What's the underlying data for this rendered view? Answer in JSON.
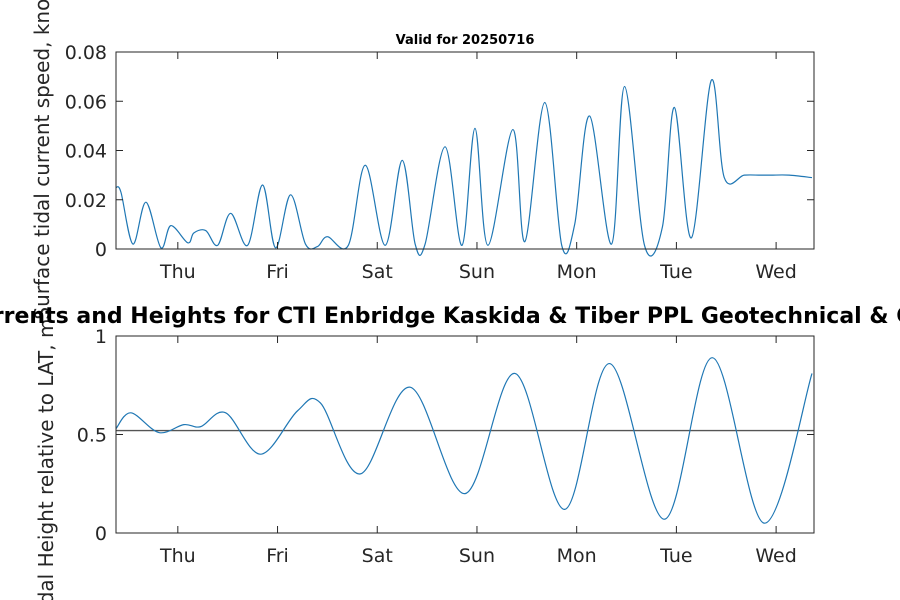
{
  "figure": {
    "main_title": "Surface Tidal Currents and Heights for CTI Enbridge  Kaskida & Tiber PPL Geotechnical & Geophysical Survey",
    "subtitle": "Valid for 20250716"
  },
  "chart_data": [
    {
      "type": "line",
      "title": "Valid for 20250716",
      "xlabel": "",
      "ylabel": "Surface tidal current speed, knots",
      "x_unit": "days",
      "xlim": [
        0,
        7
      ],
      "ylim": [
        0,
        0.08
      ],
      "yticks": [
        0,
        0.02,
        0.04,
        0.06,
        0.08
      ],
      "ytick_labels": [
        "0",
        "0.02",
        "0.04",
        "0.06",
        "0.08"
      ],
      "xticks": [
        0.62,
        1.62,
        2.62,
        3.62,
        4.62,
        5.62,
        6.62
      ],
      "xtick_labels": [
        "Thu",
        "Fri",
        "Sat",
        "Sun",
        "Mon",
        "Tue",
        "Wed"
      ],
      "grid": false,
      "color": "#1f77b4",
      "series": [
        {
          "x": [
            0,
            0.05,
            0.17,
            0.3,
            0.45,
            0.55,
            0.72,
            0.78,
            0.9,
            1.02,
            1.15,
            1.32,
            1.47,
            1.6,
            1.75,
            1.9,
            2.02,
            2.12,
            2.33,
            2.5,
            2.7,
            2.87,
            3.0,
            3.1,
            3.3,
            3.47,
            3.6,
            3.73,
            3.98,
            4.1,
            4.3,
            4.47,
            4.6,
            4.75,
            4.97,
            5.1,
            5.3,
            5.48,
            5.6,
            5.77,
            5.97,
            6.1,
            6.3,
            6.46,
            6.57,
            6.75,
            6.98
          ],
          "y": [
            0.025,
            0.023,
            0.002,
            0.019,
            0.0005,
            0.0095,
            0.0025,
            0.0065,
            0.0075,
            0.0015,
            0.0145,
            0.0015,
            0.026,
            0.0005,
            0.022,
            0.002,
            0.001,
            0.005,
            0.0015,
            0.034,
            0.0015,
            0.036,
            0.002,
            0.002,
            0.0415,
            0.0015,
            0.049,
            0.0015,
            0.0485,
            0.003,
            0.0595,
            0.0015,
            0.01,
            0.054,
            0.002,
            0.066,
            0.0015,
            0.009,
            0.0575,
            0.0045,
            0.0685,
            0.029,
            0.03,
            0.03,
            0.03,
            0.03,
            0.029
          ]
        }
      ]
    },
    {
      "type": "line",
      "title": "",
      "xlabel": "",
      "ylabel": "Tidal Height relative to LAT, m",
      "x_unit": "days",
      "xlim": [
        0,
        7
      ],
      "ylim": [
        0,
        1
      ],
      "yticks": [
        0,
        0.5,
        1
      ],
      "ytick_labels": [
        "0",
        "0.5",
        "1"
      ],
      "xticks": [
        0.62,
        1.62,
        2.62,
        3.62,
        4.62,
        5.62,
        6.62
      ],
      "xtick_labels": [
        "Thu",
        "Fri",
        "Sat",
        "Sun",
        "Mon",
        "Tue",
        "Wed"
      ],
      "grid": false,
      "color": "#1f77b4",
      "reference_line": {
        "y": 0.52,
        "color": "#555555"
      },
      "series": [
        {
          "x": [
            0,
            0.15,
            0.43,
            0.68,
            0.85,
            1.1,
            1.45,
            1.82,
            2.05,
            2.45,
            2.95,
            3.5,
            4.0,
            4.5,
            4.95,
            5.5,
            5.98,
            6.5,
            6.98
          ],
          "y": [
            0.53,
            0.61,
            0.51,
            0.55,
            0.54,
            0.61,
            0.4,
            0.62,
            0.66,
            0.3,
            0.74,
            0.2,
            0.81,
            0.12,
            0.86,
            0.07,
            0.89,
            0.05,
            0.81
          ]
        }
      ]
    }
  ]
}
